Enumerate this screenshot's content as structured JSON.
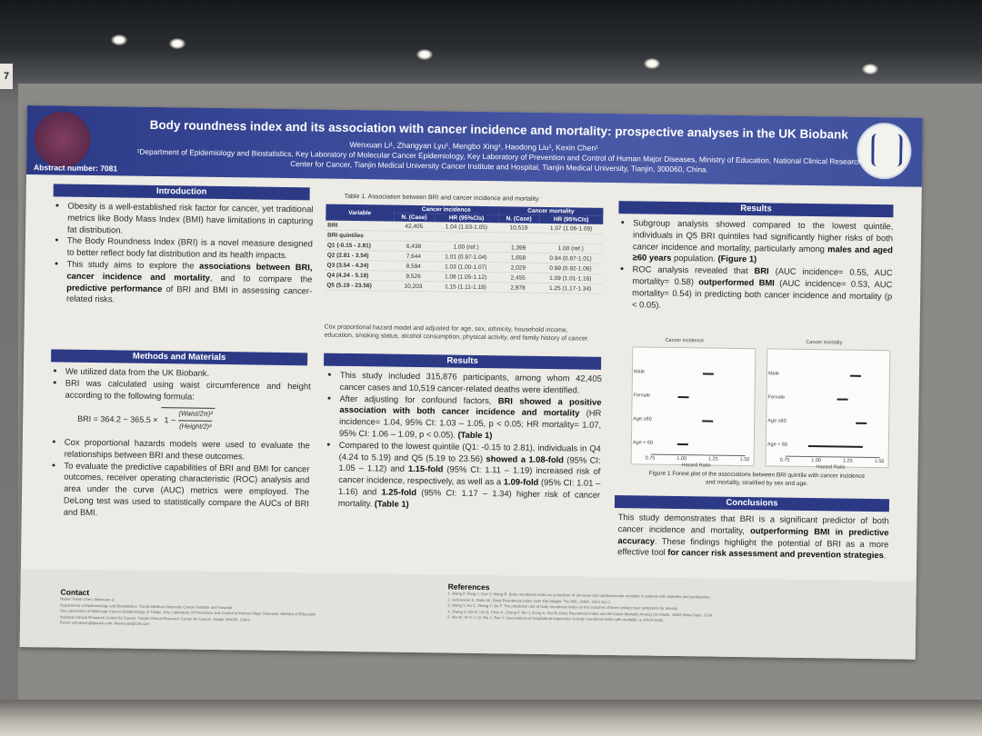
{
  "sign_text": "7",
  "header": {
    "title": "Body roundness index and its association with cancer incidence and mortality: prospective analyses in the UK Biobank",
    "authors": "Wenxuan Li¹, Zhangyan Lyu¹, Mengbo Xing¹, Haodong Liu¹, Kexin Chen¹",
    "affiliation": "¹Department of Epidemiology and Biostatistics, Key Laboratory of Molecular Cancer Epidemiology, Key Laboratory of Prevention and Control of Human Major Diseases, Ministry of Education, National Clinical Research Center for Cancer, Tianjin Medical University Cancer Institute and Hospital, Tianjin Medical University, Tianjin, 300060, China.",
    "abstract_number": "Abstract number: 7081"
  },
  "introduction": {
    "heading": "Introduction",
    "bullets": [
      "Obesity is a well-established risk factor for cancer, yet traditional metrics like Body Mass Index (BMI) have limitations in capturing fat distribution.",
      "The Body Roundness Index (BRI) is a novel measure designed to better reflect body fat distribution and its health impacts."
    ],
    "bullet3_a": "This study aims to explore the ",
    "bullet3_b": "associations between BRI, cancer incidence and mortality",
    "bullet3_c": ", and to compare the ",
    "bullet3_d": "predictive performance",
    "bullet3_e": " of BRI and BMI in assessing cancer-related risks."
  },
  "methods": {
    "heading": "Methods and Materials",
    "bullets": [
      "We utilized data from the UK Biobank.",
      "BRI was calculated using waist circumference and height according to the following formula:"
    ],
    "formula_lhs": "BRI = 364.2 − 365.5 ×",
    "formula_inner": "1 −",
    "formula_num": "(Waist/2π)²",
    "formula_den": "(Height/2)²",
    "bullets2": [
      "Cox proportional hazards models were used to evaluate the relationships between BRI and these outcomes.",
      "To evaluate the predictive capabilities of BRI and BMI for cancer outcomes, receiver operating characteristic (ROC) analysis and area under the curve (AUC) metrics were employed. The DeLong test was used to statistically compare the AUCs of BRI and BMI."
    ]
  },
  "table1": {
    "caption": "Table 1. Association between BRI and cancer incidence and mortality",
    "col_variable": "Variable",
    "col_incidence": "Cancer incidence",
    "col_mortality": "Cancer mortality",
    "sub_n": "N. (Case)",
    "sub_hr": "HR (95%CIs)",
    "rows": [
      {
        "label": "BRI",
        "n1": "42,405",
        "hr1": "1.04 (1.03-1.05)",
        "n2": "10,519",
        "hr2": "1.07 (1.06-1.09)"
      },
      {
        "label": "BRI quintiles",
        "n1": "",
        "hr1": "",
        "n2": "",
        "hr2": ""
      },
      {
        "label": "Q1 (-0.15 - 2.81)",
        "n1": "6,438",
        "hr1": "1.00 (ref.)",
        "n2": "1,399",
        "hr2": "1.00 (ref.)"
      },
      {
        "label": "Q2 (2.81 - 3.54)",
        "n1": "7,644",
        "hr1": "1.01 (0.97-1.04)",
        "n2": "1,658",
        "hr2": "0.94 (0.87-1.01)"
      },
      {
        "label": "Q3 (3.54 - 4.24)",
        "n1": "8,594",
        "hr1": "1.03 (1.00-1.07)",
        "n2": "2,029",
        "hr2": "0.99 (0.92-1.06)"
      },
      {
        "label": "Q4 (4.24 - 5.19)",
        "n1": "9,526",
        "hr1": "1.08 (1.05-1.12)",
        "n2": "2,455",
        "hr2": "1.09 (1.01-1.16)"
      },
      {
        "label": "Q5 (5.19 - 23.56)",
        "n1": "10,203",
        "hr1": "1.15 (1.11-1.19)",
        "n2": "2,978",
        "hr2": "1.25 (1.17-1.34)"
      }
    ],
    "footnote": "Cox proportional hazard model and adjusted for age, sex, ethnicity, household income, education, smoking status, alcohol consumption, physical activity, and family history of cancer."
  },
  "results": {
    "heading": "Results",
    "b1": "This study included 315,876 participants, among whom 42,405 cancer cases and 10,519 cancer-related deaths were identified.",
    "b2_a": "After adjusting for confound factors, ",
    "b2_b": "BRI showed a positive association with both cancer incidence and mortality",
    "b2_c": " (HR incidence= 1.04, 95% CI: 1.03 – 1.05, p < 0.05; HR mortality= 1.07, 95% CI: 1.06 – 1.09, p < 0.05). ",
    "b2_d": "(Table 1)",
    "b3_a": "Compared to the lowest quintile (Q1: -0.15 to 2.81), individuals in Q4 (4.24 to 5.19) and Q5 (5.19 to 23.56) ",
    "b3_b": "showed a 1.08-fold",
    "b3_c": " (95% CI: 1.05 – 1.12) and ",
    "b3_d": "1.15-fold",
    "b3_e": " (95% CI: 1.11 – 1.19) increased risk of cancer incidence, respectively, as well as a ",
    "b3_f": "1.09-fold",
    "b3_g": " (95% CI: 1.01 – 1.16) and ",
    "b3_h": "1.25-fold",
    "b3_i": " (95% CI: 1.17 – 1.34) higher risk of cancer mortality. ",
    "b3_j": "(Table 1)"
  },
  "results_right": {
    "heading": "Results",
    "b1_a": "Subgroup analysis showed compared to the lowest quintile, individuals in Q5 BRI quintiles had significantly higher risks of both cancer incidence and mortality, particularly among ",
    "b1_b": "males and aged ≥60 years",
    "b1_c": " population. ",
    "b1_d": "(Figure 1)",
    "b2_a": "ROC analysis revealed that ",
    "b2_b": "BRI",
    "b2_c": " (AUC incidence= 0.55, AUC mortality= 0.58) ",
    "b2_d": "outperformed BMI",
    "b2_e": " (AUC incidence= 0.53, AUC mortality= 0.54) in predicting both cancer incidence and mortality (p < 0.05)."
  },
  "figure1": {
    "panel_left_title": "Cancer incidence",
    "panel_right_title": "Cancer mortality",
    "rows": [
      "Male",
      "Female",
      "Age ≥60",
      "Age < 60"
    ],
    "x_ticks": [
      "0.75",
      "1.00",
      "1.25",
      "1.50"
    ],
    "x_label": "Hazard Ratio",
    "caption": "Figure 1 Forest plot of the associations between BRI quintile with cancer incidence and mortality, stratified by sex and age."
  },
  "chart_data": {
    "type": "scatter",
    "title": "",
    "xlabel": "Hazard Ratio",
    "ylabel": "",
    "categories": [
      "Male",
      "Female",
      "Age ≥60",
      "Age < 60"
    ],
    "xlim": [
      0.75,
      1.5
    ],
    "series": [
      {
        "name": "Cancer incidence",
        "values": [
          1.2,
          1.0,
          1.2,
          1.0
        ]
      },
      {
        "name": "Cancer mortality",
        "values": [
          1.3,
          1.2,
          1.35,
          1.15
        ]
      }
    ]
  },
  "conclusions": {
    "heading": "Conclusions",
    "text_a": "This study demonstrates that BRI is a significant predictor of both cancer incidence and mortality, ",
    "text_b": "outperforming BMI in predictive accuracy",
    "text_c": ". These findings highlight the potential of BRI as a more effective tool ",
    "text_d": "for cancer risk assessment and prevention strategies",
    "text_e": "."
  },
  "contact": {
    "heading": "Contact",
    "lines": [
      "Name: Kexin Chen, Wenxuan Li",
      "Department of Epidemiology and Biostatistics, Tianjin Medical University Cancer Institute and Hospital",
      "Key Laboratory of Molecular Cancer Epidemiology of Tianjin, Key Laboratory of Prevention and Control of Human Major Diseases, Ministry of Education",
      "National Clinical Research Center for Cancer, Tianjin Clinical Research Center for Cancer, Tianjin 300060, China",
      "Email: chenkexin@tjmuch.com; liwenxuan@126.com"
    ]
  },
  "references": {
    "heading": "References",
    "lines": [
      "1. Wang P, Fang J, Guo Y, Wang R. Body roundness index as a predictor of all-cause and cardiovascular mortality in patients with diabetes and prediabetes.",
      "2. Schemmer K. Dietz AK, Body Roundness Index Over Dip Weight: The BRI, JAMA. 2024 Jun 1",
      "3. Wang Y, Hu C, Zhang Y, Ge F. The predictive role of body roundness index on the outcome of lower urinary tract symptoms for obesity.",
      "4. Zhang X, Ma N, Lin Q, Chen K, Zheng F, Wu J, Dong X, Niu W. Body Roundness Index and All-Cause Mortality Among US Adults. JAMA Netw Open. 2024",
      "5. Wu W, Ye X, Li Q, Wu J, Tian Y. Associations of longitudinal trajectories in body roundness index with mortality: a cohort study."
    ]
  }
}
